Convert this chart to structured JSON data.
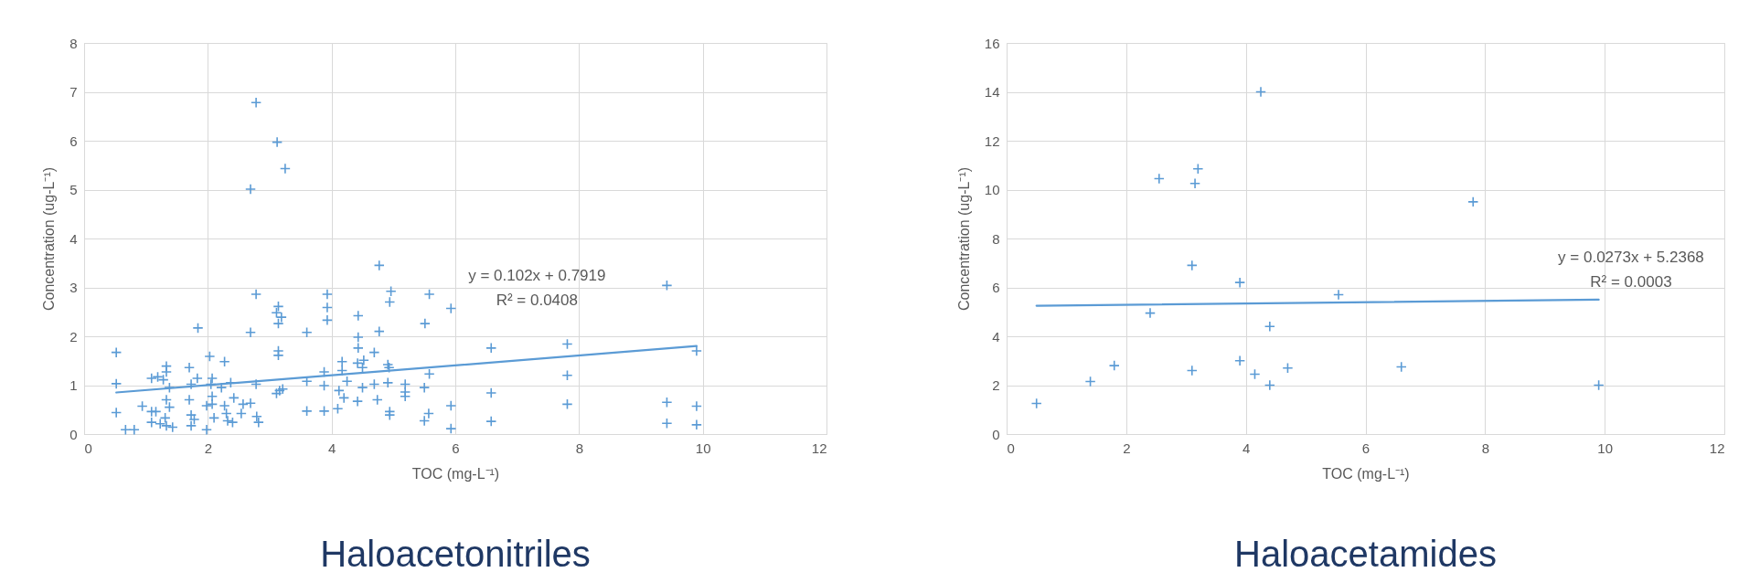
{
  "chart_data": [
    {
      "type": "scatter",
      "title": "Haloacetonitriles",
      "xlabel": "TOC (mg-L⁻¹)",
      "ylabel": "Concentration (ug-L⁻¹)",
      "xlim": [
        0,
        12
      ],
      "ylim": [
        0,
        8
      ],
      "xticks": [
        0,
        2,
        4,
        6,
        8,
        10,
        12
      ],
      "yticks": [
        0,
        1,
        2,
        3,
        4,
        5,
        6,
        7,
        8
      ],
      "grid": true,
      "series": [
        {
          "marker": "cross",
          "color": "#5b9bd5",
          "x": [
            2.78,
            3.12,
            3.25,
            2.69,
            2.78,
            3.14,
            3.11,
            3.19,
            3.14,
            3.93,
            3.93,
            3.93,
            1.84,
            2.69,
            3.6,
            4.43,
            4.43,
            4.43,
            4.77,
            4.77,
            4.69,
            0.52,
            0.52,
            0.52,
            0.67,
            0.81,
            0.94,
            1.09,
            1.19,
            1.33,
            1.33,
            1.28,
            1.38,
            1.09,
            1.16,
            1.33,
            1.38,
            1.31,
            1.33,
            1.23,
            1.43,
            1.09,
            1.7,
            1.7,
            1.73,
            1.83,
            1.73,
            1.73,
            1.78,
            1.98,
            2.03,
            2.27,
            2.07,
            2.05,
            2.22,
            2.37,
            2.07,
            1.98,
            2.07,
            2.27,
            2.3,
            2.1,
            2.32,
            2.4,
            2.42,
            2.57,
            2.69,
            2.54,
            2.79,
            2.82,
            2.78,
            3.14,
            3.14,
            3.16,
            3.21,
            3.11,
            3.6,
            3.6,
            3.88,
            3.88,
            3.88,
            4.1,
            4.12,
            4.17,
            4.17,
            4.25,
            4.2,
            4.42,
            4.5,
            4.52,
            4.5,
            4.42,
            4.69,
            4.74,
            4.96,
            4.94,
            4.91,
            4.93,
            4.91,
            4.94,
            4.94,
            5.19,
            5.19,
            5.19,
            5.5,
            5.58,
            5.51,
            5.58,
            5.57,
            5.5,
            5.93,
            5.93,
            5.93,
            6.58,
            6.58,
            6.58,
            7.81,
            7.81,
            7.81,
            9.42,
            9.42,
            9.42,
            9.9,
            9.9,
            9.9
          ],
          "values": [
            6.78,
            5.97,
            5.43,
            5.01,
            2.86,
            2.61,
            2.48,
            2.39,
            2.26,
            2.86,
            2.59,
            2.33,
            2.17,
            2.08,
            2.08,
            2.42,
            1.98,
            1.76,
            3.45,
            2.1,
            1.67,
            1.67,
            1.03,
            0.44,
            0.09,
            0.09,
            0.57,
            1.14,
            1.17,
            1.39,
            1.27,
            1.11,
            0.95,
            0.46,
            0.46,
            0.7,
            0.55,
            0.33,
            0.17,
            0.21,
            0.14,
            0.24,
            1.36,
            0.7,
            1.02,
            1.14,
            0.39,
            0.17,
            0.3,
            0.09,
            1.59,
            1.48,
            1.14,
            1.02,
            0.95,
            1.05,
            0.77,
            0.58,
            0.61,
            0.58,
            0.42,
            0.33,
            0.27,
            0.24,
            0.74,
            0.61,
            0.63,
            0.42,
            0.36,
            0.24,
            1.02,
            1.7,
            1.61,
            0.89,
            0.92,
            0.83,
            1.08,
            0.47,
            1.27,
            0.99,
            0.47,
            0.52,
            0.89,
            1.48,
            1.3,
            1.08,
            0.74,
            1.45,
            1.36,
            1.51,
            0.95,
            0.67,
            1.02,
            0.7,
            2.92,
            2.7,
            1.42,
            1.36,
            1.05,
            0.46,
            0.39,
            1.02,
            0.86,
            0.77,
            0.95,
            2.86,
            2.26,
            1.23,
            0.42,
            0.27,
            2.57,
            0.58,
            0.11,
            1.76,
            0.84,
            0.26,
            1.84,
            1.2,
            0.61,
            3.04,
            0.65,
            0.22,
            1.7,
            0.57,
            0.19
          ]
        },
        {
          "type": "line",
          "marker": "none",
          "color": "#5b9bd5",
          "x": [
            0.52,
            9.9
          ],
          "values": [
            0.85,
            1.8
          ]
        }
      ],
      "annotations": [
        "y = 0.102x + 0.7919",
        "R² = 0.0408"
      ]
    },
    {
      "type": "scatter",
      "title": "Haloacetamides",
      "xlabel": "TOC (mg-L⁻¹)",
      "ylabel": "Concentration (ug-L⁻¹)",
      "xlim": [
        0,
        12
      ],
      "ylim": [
        0,
        16
      ],
      "xticks": [
        0,
        2,
        4,
        6,
        8,
        10,
        12
      ],
      "yticks": [
        0,
        2,
        4,
        6,
        8,
        10,
        12,
        14,
        16
      ],
      "grid": true,
      "series": [
        {
          "marker": "cross",
          "color": "#5b9bd5",
          "x": [
            0.5,
            1.4,
            1.8,
            2.4,
            2.55,
            3.15,
            3.2,
            3.1,
            3.1,
            3.9,
            3.9,
            4.15,
            4.25,
            4.4,
            4.4,
            4.7,
            5.55,
            6.6,
            7.8,
            9.9
          ],
          "values": [
            1.25,
            2.15,
            2.8,
            4.95,
            10.45,
            10.25,
            10.85,
            6.9,
            2.6,
            6.2,
            3.0,
            2.45,
            14.0,
            4.4,
            2.0,
            2.7,
            5.7,
            2.75,
            9.5,
            2.0
          ]
        },
        {
          "type": "line",
          "marker": "none",
          "color": "#5b9bd5",
          "x": [
            0.5,
            9.9
          ],
          "values": [
            5.25,
            5.5
          ]
        }
      ],
      "annotations": [
        "y = 0.0273x + 5.2368",
        "R² = 0.0003"
      ]
    }
  ]
}
